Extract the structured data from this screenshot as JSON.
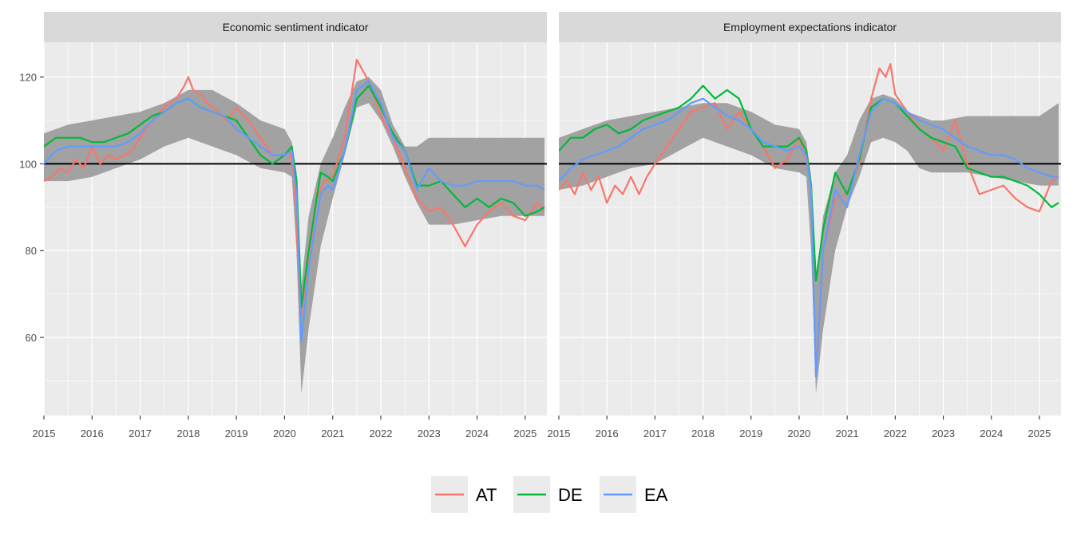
{
  "chart_data": [
    {
      "type": "line",
      "title": "Economic sentiment indicator",
      "xlim": [
        2015.0,
        2025.45
      ],
      "ylim": [
        42.0,
        128.0
      ],
      "x_ticks": [
        "2015",
        "2016",
        "2017",
        "2018",
        "2019",
        "2020",
        "2021",
        "2022",
        "2023",
        "2024",
        "2025"
      ],
      "y_ticks": [
        "60",
        "80",
        "100",
        "120"
      ],
      "reference_line": 100,
      "band": {
        "x": [
          2015.0,
          2015.5,
          2016.0,
          2016.5,
          2017.0,
          2017.5,
          2018.0,
          2018.5,
          2019.0,
          2019.5,
          2020.0,
          2020.15,
          2020.25,
          2020.35,
          2020.5,
          2020.75,
          2021.0,
          2021.25,
          2021.5,
          2021.75,
          2022.0,
          2022.25,
          2022.5,
          2022.75,
          2023.0,
          2023.5,
          2024.0,
          2024.5,
          2025.0,
          2025.4
        ],
        "lower": [
          96,
          96,
          97,
          99,
          101,
          104,
          106,
          104,
          102,
          99,
          98,
          97,
          80,
          47,
          62,
          81,
          92,
          102,
          113,
          114,
          110,
          104,
          97,
          91,
          86,
          86,
          87,
          88,
          88,
          88
        ],
        "upper": [
          107,
          109,
          110,
          111,
          112,
          114,
          117,
          117,
          114,
          110,
          108,
          105,
          98,
          72,
          88,
          100,
          106,
          113,
          119,
          120,
          117,
          109,
          104,
          104,
          106,
          106,
          106,
          106,
          106,
          106
        ]
      },
      "series": [
        {
          "name": "AT",
          "color": "#F8766D",
          "x": [
            2015.0,
            2015.17,
            2015.33,
            2015.5,
            2015.67,
            2015.83,
            2016.0,
            2016.17,
            2016.33,
            2016.5,
            2016.67,
            2016.83,
            2017.0,
            2017.25,
            2017.5,
            2017.75,
            2017.92,
            2018.0,
            2018.1,
            2018.25,
            2018.4,
            2018.6,
            2018.8,
            2019.0,
            2019.25,
            2019.5,
            2019.75,
            2020.0,
            2020.1,
            2020.2,
            2020.33,
            2020.5,
            2020.67,
            2020.83,
            2021.0,
            2021.25,
            2021.5,
            2021.6,
            2021.75,
            2022.0,
            2022.25,
            2022.5,
            2022.75,
            2023.0,
            2023.25,
            2023.5,
            2023.75,
            2024.0,
            2024.25,
            2024.5,
            2024.75,
            2025.0,
            2025.25,
            2025.4
          ],
          "y": [
            96,
            97,
            99,
            98,
            101,
            99,
            104,
            100,
            102,
            101,
            102,
            103,
            106,
            110,
            113,
            115,
            118,
            120,
            117,
            116,
            114,
            112,
            110,
            113,
            110,
            106,
            102,
            102,
            103,
            97,
            64,
            78,
            92,
            96,
            97,
            106,
            124,
            122,
            119,
            111,
            106,
            99,
            92,
            89,
            90,
            86,
            81,
            86,
            89,
            91,
            88,
            87,
            91,
            89
          ]
        },
        {
          "name": "DE",
          "color": "#00BA38",
          "x": [
            2015.0,
            2015.25,
            2015.5,
            2015.75,
            2016.0,
            2016.25,
            2016.5,
            2016.75,
            2017.0,
            2017.25,
            2017.5,
            2017.75,
            2018.0,
            2018.25,
            2018.5,
            2018.75,
            2019.0,
            2019.25,
            2019.5,
            2019.75,
            2020.0,
            2020.15,
            2020.25,
            2020.35,
            2020.5,
            2020.75,
            2020.9,
            2021.0,
            2021.25,
            2021.5,
            2021.75,
            2022.0,
            2022.25,
            2022.5,
            2022.75,
            2023.0,
            2023.25,
            2023.5,
            2023.75,
            2024.0,
            2024.25,
            2024.5,
            2024.75,
            2025.0,
            2025.25,
            2025.4
          ],
          "y": [
            104,
            106,
            106,
            106,
            105,
            105,
            106,
            107,
            109,
            111,
            112,
            114,
            115,
            113,
            112,
            111,
            110,
            106,
            102,
            100,
            102,
            104,
            96,
            67,
            80,
            98,
            97,
            96,
            103,
            115,
            118,
            113,
            107,
            103,
            95,
            95,
            96,
            93,
            90,
            92,
            90,
            92,
            91,
            88,
            89,
            90
          ]
        },
        {
          "name": "EA",
          "color": "#619CFF",
          "x": [
            2015.0,
            2015.25,
            2015.5,
            2015.75,
            2016.0,
            2016.25,
            2016.5,
            2016.75,
            2017.0,
            2017.25,
            2017.5,
            2017.75,
            2018.0,
            2018.25,
            2018.5,
            2018.75,
            2019.0,
            2019.25,
            2019.5,
            2019.75,
            2020.0,
            2020.15,
            2020.25,
            2020.35,
            2020.5,
            2020.75,
            2020.9,
            2021.0,
            2021.25,
            2021.5,
            2021.75,
            2022.0,
            2022.25,
            2022.5,
            2022.75,
            2023.0,
            2023.25,
            2023.5,
            2023.75,
            2024.0,
            2024.25,
            2024.5,
            2024.75,
            2025.0,
            2025.25,
            2025.4
          ],
          "y": [
            100,
            103,
            104,
            104,
            104,
            104,
            104,
            105,
            107,
            110,
            112,
            114,
            115,
            113,
            112,
            111,
            108,
            106,
            104,
            102,
            102,
            103,
            93,
            59,
            76,
            93,
            95,
            94,
            103,
            117,
            119,
            114,
            106,
            103,
            94,
            99,
            96,
            95,
            95,
            96,
            96,
            96,
            96,
            95,
            95,
            94
          ]
        }
      ]
    },
    {
      "type": "line",
      "title": "Employment expectations indicator",
      "xlim": [
        2015.0,
        2025.45
      ],
      "ylim": [
        42.0,
        128.0
      ],
      "x_ticks": [
        "2015",
        "2016",
        "2017",
        "2018",
        "2019",
        "2020",
        "2021",
        "2022",
        "2023",
        "2024",
        "2025"
      ],
      "y_ticks": [
        "60",
        "80",
        "100",
        "120"
      ],
      "reference_line": 100,
      "band": {
        "x": [
          2015.0,
          2015.5,
          2016.0,
          2016.5,
          2017.0,
          2017.5,
          2018.0,
          2018.5,
          2019.0,
          2019.5,
          2020.0,
          2020.15,
          2020.25,
          2020.35,
          2020.5,
          2020.75,
          2021.0,
          2021.25,
          2021.5,
          2021.75,
          2022.0,
          2022.25,
          2022.5,
          2022.75,
          2023.0,
          2023.5,
          2024.0,
          2024.5,
          2025.0,
          2025.4
        ],
        "lower": [
          94,
          95,
          97,
          99,
          100,
          103,
          106,
          104,
          102,
          99,
          98,
          97,
          80,
          47,
          62,
          80,
          90,
          97,
          105,
          106,
          105,
          103,
          99,
          98,
          98,
          98,
          97,
          96,
          95,
          95
        ],
        "upper": [
          106,
          108,
          110,
          111,
          112,
          113,
          114,
          114,
          112,
          109,
          108,
          105,
          97,
          72,
          88,
          98,
          102,
          110,
          115,
          116,
          115,
          112,
          111,
          110,
          110,
          111,
          111,
          111,
          111,
          114
        ]
      },
      "series": [
        {
          "name": "AT",
          "color": "#F8766D",
          "x": [
            2015.0,
            2015.17,
            2015.33,
            2015.5,
            2015.67,
            2015.83,
            2016.0,
            2016.17,
            2016.33,
            2016.5,
            2016.67,
            2016.83,
            2017.0,
            2017.25,
            2017.5,
            2017.75,
            2018.0,
            2018.25,
            2018.5,
            2018.75,
            2019.0,
            2019.25,
            2019.5,
            2019.75,
            2020.0,
            2020.15,
            2020.25,
            2020.35,
            2020.5,
            2020.75,
            2021.0,
            2021.25,
            2021.5,
            2021.67,
            2021.8,
            2021.9,
            2022.0,
            2022.25,
            2022.5,
            2022.75,
            2023.0,
            2023.25,
            2023.5,
            2023.75,
            2024.0,
            2024.25,
            2024.5,
            2024.75,
            2025.0,
            2025.25,
            2025.4
          ],
          "y": [
            94,
            96,
            93,
            98,
            94,
            97,
            91,
            95,
            93,
            97,
            93,
            97,
            100,
            104,
            108,
            112,
            113,
            114,
            108,
            112,
            108,
            104,
            99,
            101,
            106,
            101,
            95,
            51,
            80,
            92,
            93,
            100,
            115,
            122,
            120,
            123,
            116,
            112,
            108,
            106,
            103,
            110,
            100,
            93,
            94,
            95,
            92,
            90,
            89,
            96,
            97
          ]
        },
        {
          "name": "DE",
          "color": "#00BA38",
          "x": [
            2015.0,
            2015.25,
            2015.5,
            2015.75,
            2016.0,
            2016.25,
            2016.5,
            2016.75,
            2017.0,
            2017.25,
            2017.5,
            2017.75,
            2018.0,
            2018.25,
            2018.5,
            2018.75,
            2019.0,
            2019.25,
            2019.5,
            2019.75,
            2020.0,
            2020.15,
            2020.25,
            2020.35,
            2020.5,
            2020.75,
            2021.0,
            2021.25,
            2021.5,
            2021.75,
            2022.0,
            2022.25,
            2022.5,
            2022.75,
            2023.0,
            2023.25,
            2023.5,
            2023.75,
            2024.0,
            2024.25,
            2024.5,
            2024.75,
            2025.0,
            2025.25,
            2025.4
          ],
          "y": [
            103,
            106,
            106,
            108,
            109,
            107,
            108,
            110,
            111,
            112,
            113,
            115,
            118,
            115,
            117,
            115,
            108,
            104,
            104,
            104,
            106,
            103,
            95,
            73,
            85,
            98,
            93,
            101,
            113,
            115,
            114,
            111,
            108,
            106,
            105,
            104,
            99,
            98,
            97,
            97,
            96,
            95,
            93,
            90,
            91
          ]
        },
        {
          "name": "EA",
          "color": "#619CFF",
          "x": [
            2015.0,
            2015.25,
            2015.5,
            2015.75,
            2016.0,
            2016.25,
            2016.5,
            2016.75,
            2017.0,
            2017.25,
            2017.5,
            2017.75,
            2018.0,
            2018.25,
            2018.5,
            2018.75,
            2019.0,
            2019.25,
            2019.5,
            2019.75,
            2020.0,
            2020.15,
            2020.25,
            2020.35,
            2020.5,
            2020.75,
            2021.0,
            2021.25,
            2021.5,
            2021.75,
            2022.0,
            2022.25,
            2022.5,
            2022.75,
            2023.0,
            2023.25,
            2023.5,
            2023.75,
            2024.0,
            2024.25,
            2024.5,
            2024.75,
            2025.0,
            2025.25,
            2025.4
          ],
          "y": [
            96,
            99,
            101,
            102,
            103,
            104,
            106,
            108,
            109,
            110,
            112,
            114,
            115,
            113,
            111,
            110,
            108,
            105,
            104,
            103,
            104,
            102,
            94,
            51,
            80,
            94,
            90,
            102,
            112,
            115,
            114,
            112,
            110,
            109,
            108,
            106,
            104,
            103,
            102,
            102,
            101,
            99,
            98,
            97,
            97
          ]
        }
      ]
    }
  ],
  "legend": {
    "items": [
      {
        "name": "AT",
        "color": "#F8766D"
      },
      {
        "name": "DE",
        "color": "#00BA38"
      },
      {
        "name": "EA",
        "color": "#619CFF"
      }
    ],
    "position": "bottom"
  },
  "style": {
    "panel_bg": "#EBEBEB",
    "grid_color": "#FFFFFF",
    "strip_bg": "#D9D9D9",
    "band_color": "#9E9E9E",
    "reference_color": "#000000"
  }
}
